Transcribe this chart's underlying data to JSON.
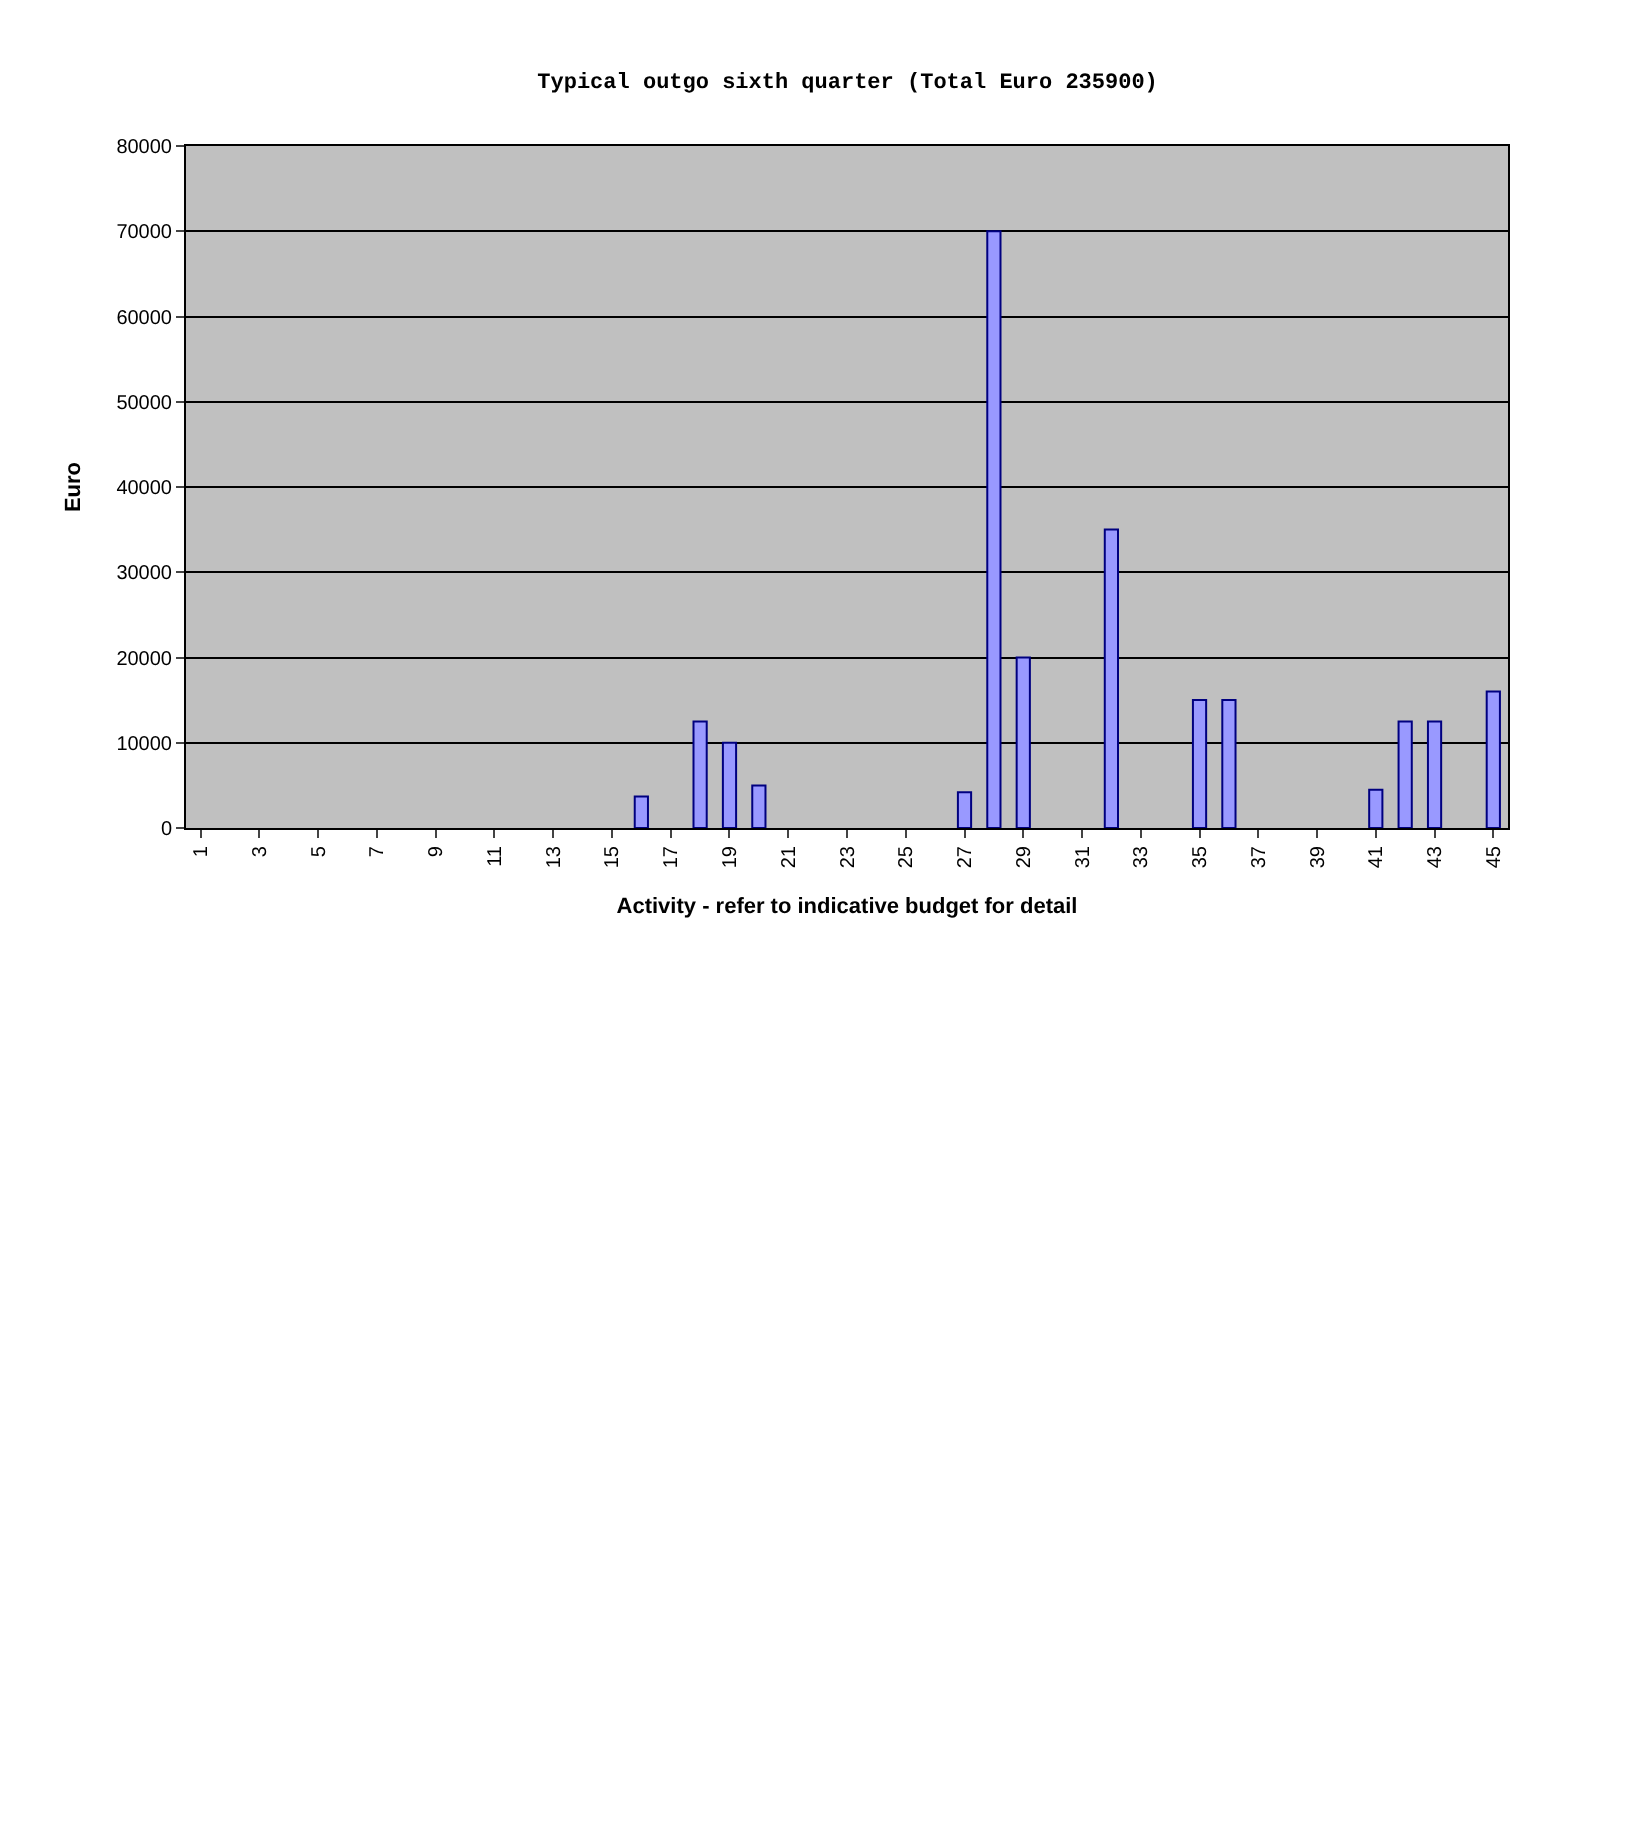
{
  "chart_data": {
    "type": "bar",
    "title": "Typical outgo sixth quarter (Total Euro 235900)",
    "xlabel": "Activity - refer to indicative budget for detail",
    "ylabel": "Euro",
    "categories": [
      "1",
      null,
      "3",
      null,
      "5",
      null,
      "7",
      null,
      "9",
      null,
      "11",
      null,
      "13",
      null,
      "15",
      null,
      "17",
      null,
      "19",
      null,
      "21",
      null,
      "23",
      null,
      "25",
      null,
      "27",
      null,
      "29",
      null,
      "31",
      null,
      "33",
      null,
      "35",
      null,
      "37",
      null,
      "39",
      null,
      "41",
      null,
      "43",
      null,
      "45"
    ],
    "values": [
      0,
      0,
      0,
      0,
      0,
      0,
      0,
      0,
      0,
      0,
      0,
      0,
      0,
      0,
      0,
      3700,
      0,
      12500,
      10000,
      5000,
      0,
      0,
      0,
      0,
      0,
      0,
      4200,
      70000,
      20000,
      0,
      0,
      35000,
      0,
      0,
      15000,
      15000,
      0,
      0,
      0,
      0,
      4500,
      12500,
      12500,
      0,
      16000
    ],
    "color": "#9999ff",
    "ylim": [
      0,
      80000
    ],
    "yticks": [
      0,
      10000,
      20000,
      30000,
      40000,
      50000,
      60000,
      70000,
      80000
    ],
    "grid": "y",
    "legend": false
  }
}
